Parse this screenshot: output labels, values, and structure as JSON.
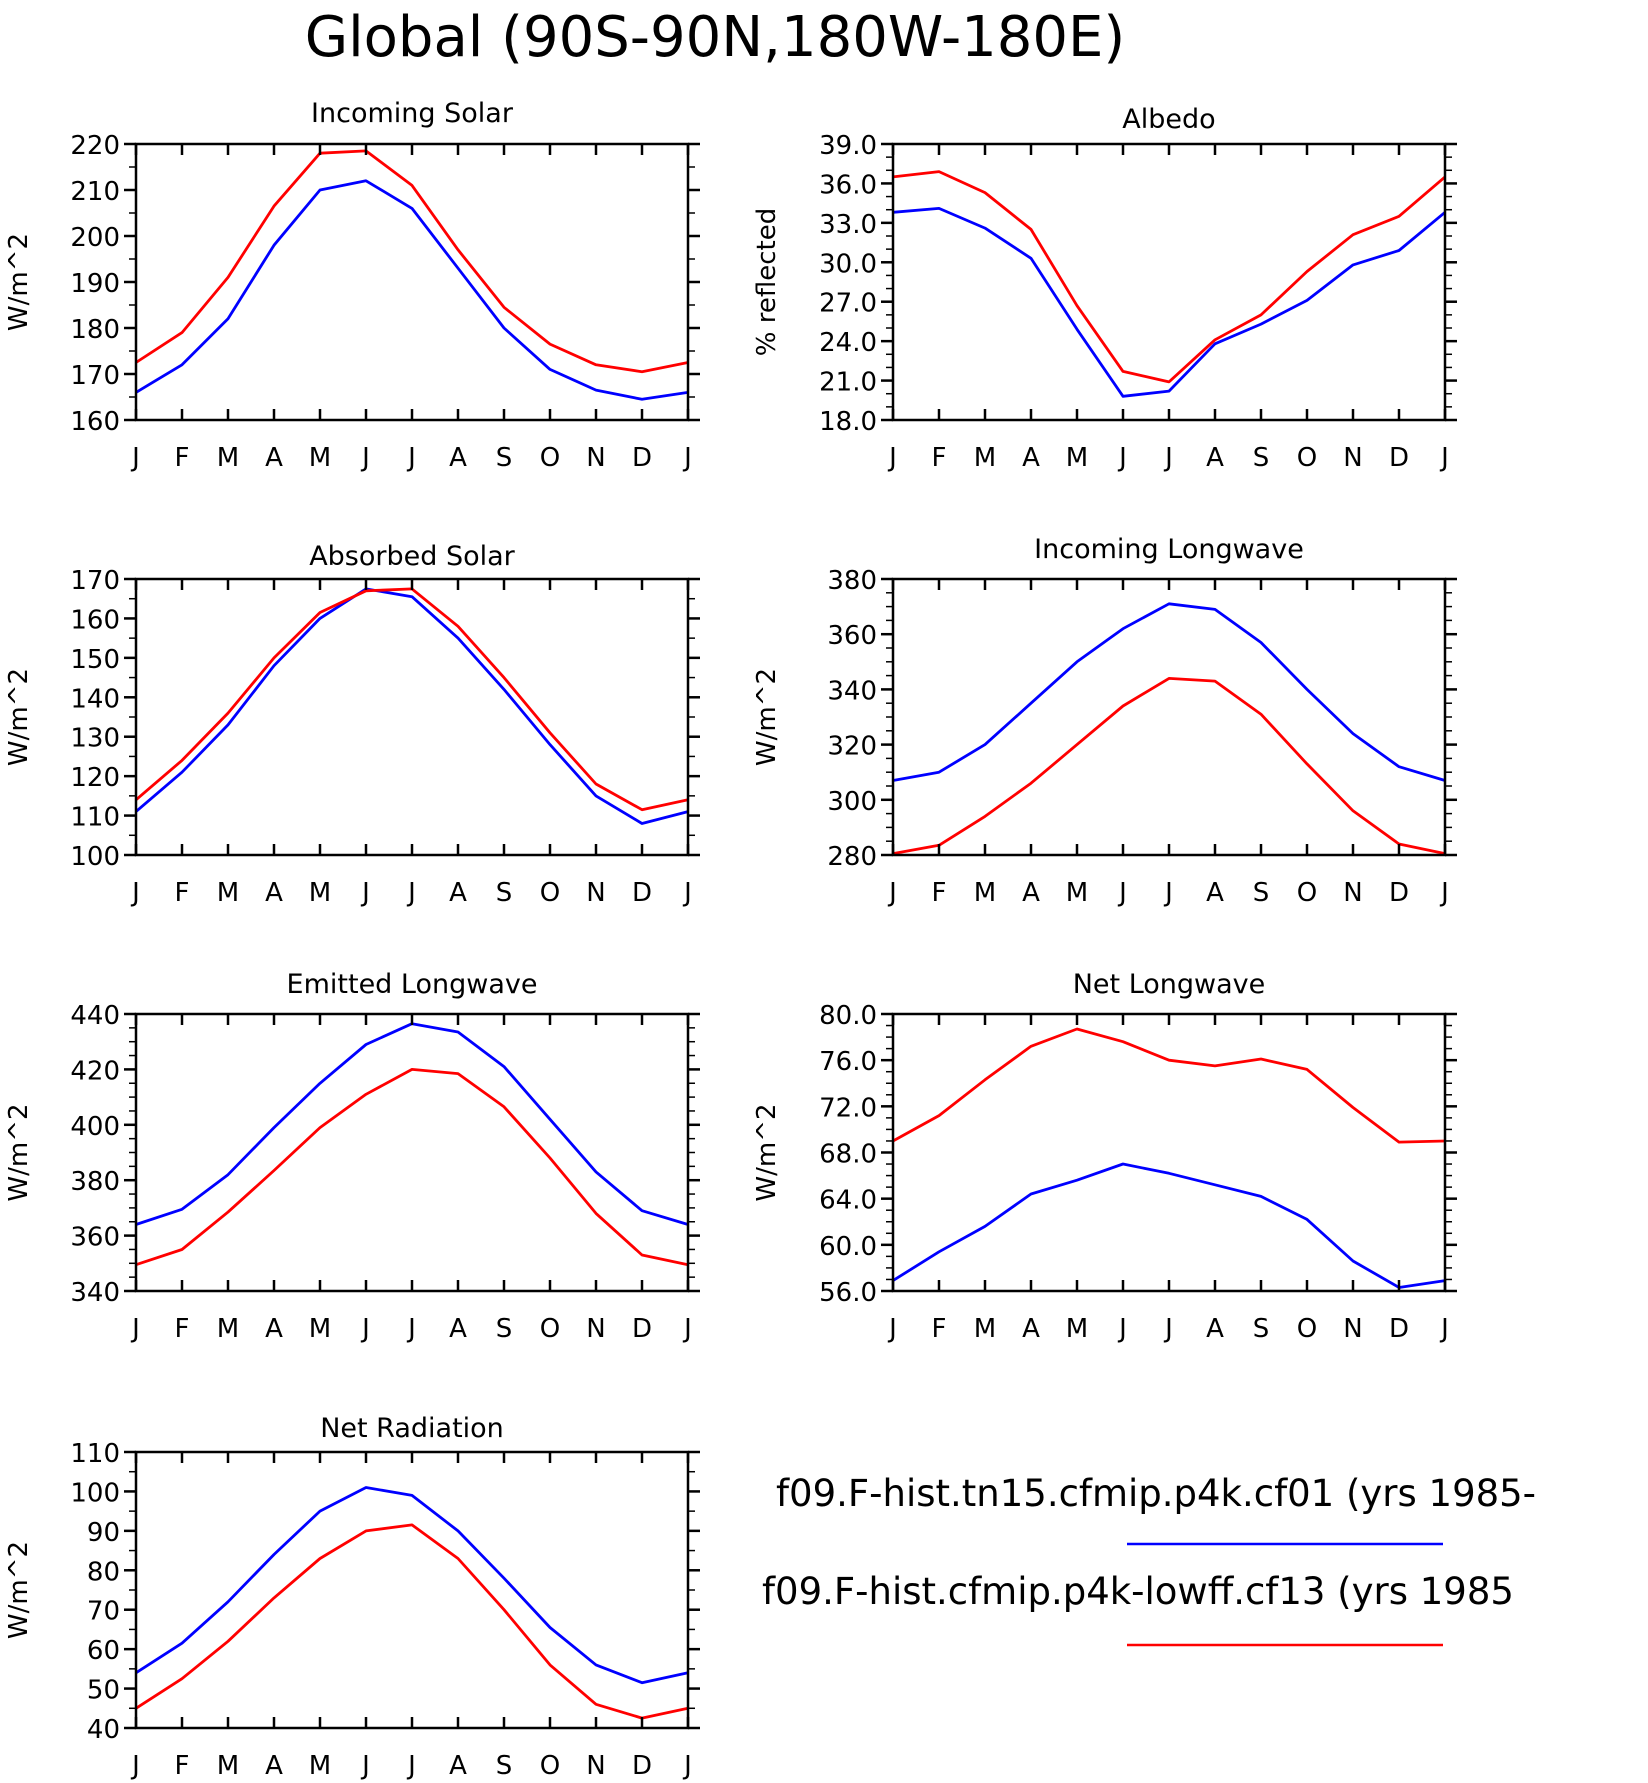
{
  "title": "Global (90S-90N,180W-180E)",
  "colors": {
    "run1": "#0000ff",
    "run2": "#ff0000"
  },
  "legend": {
    "items": [
      {
        "label": "f09.F-hist.tn15.cfmip.p4k.cf01 (yrs 1985-",
        "color": "#0000ff"
      },
      {
        "label": "f09.F-hist.cfmip.p4k-lowff.cf13 (yrs 1985",
        "color": "#ff0000"
      }
    ]
  },
  "chart_data": [
    {
      "type": "line",
      "title": "Incoming Solar",
      "ylabel": "W/m^2",
      "xlabel": "",
      "x": [
        "J",
        "F",
        "M",
        "A",
        "M",
        "J",
        "J",
        "A",
        "S",
        "O",
        "N",
        "D",
        "J"
      ],
      "ylim": [
        160,
        220
      ],
      "yticks": [
        "160",
        "170",
        "180",
        "190",
        "200",
        "210",
        "220"
      ],
      "yminor": 2,
      "series": [
        {
          "color": "#0000ff",
          "values": [
            166,
            172,
            182,
            198,
            210,
            212,
            206,
            193,
            180,
            171,
            166.5,
            164.5,
            166
          ]
        },
        {
          "color": "#ff0000",
          "values": [
            172.5,
            179,
            191,
            206.5,
            218,
            218.5,
            211,
            197,
            184.5,
            176.5,
            172,
            170.5,
            172.5
          ]
        }
      ]
    },
    {
      "type": "line",
      "title": "Albedo",
      "ylabel": "% reflected",
      "xlabel": "",
      "x": [
        "J",
        "F",
        "M",
        "A",
        "M",
        "J",
        "J",
        "A",
        "S",
        "O",
        "N",
        "D",
        "J"
      ],
      "ylim": [
        18,
        39
      ],
      "yticks": [
        "18.0",
        "21.0",
        "24.0",
        "27.0",
        "30.0",
        "33.0",
        "36.0",
        "39.0"
      ],
      "yminor": 3,
      "series": [
        {
          "color": "#0000ff",
          "values": [
            33.8,
            34.1,
            32.6,
            30.3,
            24.9,
            19.8,
            20.2,
            23.8,
            25.3,
            27.1,
            29.8,
            30.9,
            33.8
          ]
        },
        {
          "color": "#ff0000",
          "values": [
            36.5,
            36.9,
            35.3,
            32.5,
            26.7,
            21.7,
            20.9,
            24.1,
            26.0,
            29.3,
            32.1,
            33.5,
            36.5
          ]
        }
      ]
    },
    {
      "type": "line",
      "title": "Absorbed Solar",
      "ylabel": "W/m^2",
      "xlabel": "",
      "x": [
        "J",
        "F",
        "M",
        "A",
        "M",
        "J",
        "J",
        "A",
        "S",
        "O",
        "N",
        "D",
        "J"
      ],
      "ylim": [
        100,
        170
      ],
      "yticks": [
        "100",
        "110",
        "120",
        "130",
        "140",
        "150",
        "160",
        "170"
      ],
      "yminor": 2,
      "series": [
        {
          "color": "#0000ff",
          "values": [
            111,
            121,
            133,
            148,
            160,
            167.5,
            165.5,
            155,
            142,
            128,
            115,
            108,
            111
          ]
        },
        {
          "color": "#ff0000",
          "values": [
            114,
            124,
            136,
            150,
            161.5,
            167,
            167.5,
            158,
            145,
            131,
            118,
            111.5,
            114
          ]
        }
      ]
    },
    {
      "type": "line",
      "title": "Incoming Longwave",
      "ylabel": "W/m^2",
      "xlabel": "",
      "x": [
        "J",
        "F",
        "M",
        "A",
        "M",
        "J",
        "J",
        "A",
        "S",
        "O",
        "N",
        "D",
        "J"
      ],
      "ylim": [
        280,
        380
      ],
      "yticks": [
        "280",
        "300",
        "320",
        "340",
        "360",
        "380"
      ],
      "yminor": 4,
      "series": [
        {
          "color": "#0000ff",
          "values": [
            307,
            310,
            320,
            335,
            350,
            362,
            371,
            369,
            357,
            340,
            324,
            312,
            307
          ]
        },
        {
          "color": "#ff0000",
          "values": [
            280.5,
            283.5,
            294,
            306,
            320,
            334,
            344,
            343,
            331,
            313,
            296,
            284,
            280.5
          ]
        }
      ]
    },
    {
      "type": "line",
      "title": "Emitted Longwave",
      "ylabel": "W/m^2",
      "xlabel": "",
      "x": [
        "J",
        "F",
        "M",
        "A",
        "M",
        "J",
        "J",
        "A",
        "S",
        "O",
        "N",
        "D",
        "J"
      ],
      "ylim": [
        340,
        440
      ],
      "yticks": [
        "340",
        "360",
        "380",
        "400",
        "420",
        "440"
      ],
      "yminor": 4,
      "series": [
        {
          "color": "#0000ff",
          "values": [
            364,
            369.5,
            382,
            399,
            415,
            429,
            436.5,
            433.5,
            421,
            402,
            383,
            369,
            364
          ]
        },
        {
          "color": "#ff0000",
          "values": [
            349.5,
            355,
            368.5,
            383.5,
            399,
            411,
            420,
            418.5,
            406.5,
            388,
            368,
            353,
            349.5
          ]
        }
      ]
    },
    {
      "type": "line",
      "title": "Net Longwave",
      "ylabel": "W/m^2",
      "xlabel": "",
      "x": [
        "J",
        "F",
        "M",
        "A",
        "M",
        "J",
        "J",
        "A",
        "S",
        "O",
        "N",
        "D",
        "J"
      ],
      "ylim": [
        56,
        80
      ],
      "yticks": [
        "56.0",
        "60.0",
        "64.0",
        "68.0",
        "72.0",
        "76.0",
        "80.0"
      ],
      "yminor": 4,
      "series": [
        {
          "color": "#0000ff",
          "values": [
            56.9,
            59.4,
            61.6,
            64.4,
            65.6,
            67.0,
            66.2,
            65.2,
            64.2,
            62.2,
            58.6,
            56.3,
            56.9
          ]
        },
        {
          "color": "#ff0000",
          "values": [
            69.0,
            71.2,
            74.3,
            77.2,
            78.7,
            77.6,
            76.0,
            75.5,
            76.1,
            75.2,
            71.9,
            68.9,
            69.0
          ]
        }
      ]
    },
    {
      "type": "line",
      "title": "Net Radiation",
      "ylabel": "W/m^2",
      "xlabel": "",
      "x": [
        "J",
        "F",
        "M",
        "A",
        "M",
        "J",
        "J",
        "A",
        "S",
        "O",
        "N",
        "D",
        "J"
      ],
      "ylim": [
        40,
        110
      ],
      "yticks": [
        "40",
        "50",
        "60",
        "70",
        "80",
        "90",
        "100",
        "110"
      ],
      "yminor": 2,
      "series": [
        {
          "color": "#0000ff",
          "values": [
            54,
            61.5,
            72,
            84,
            95,
            101,
            99,
            90,
            78,
            65.5,
            56,
            51.5,
            54
          ]
        },
        {
          "color": "#ff0000",
          "values": [
            45,
            52.5,
            62,
            73,
            83,
            90,
            91.5,
            83,
            70,
            56,
            46,
            42.5,
            45
          ]
        }
      ]
    }
  ]
}
